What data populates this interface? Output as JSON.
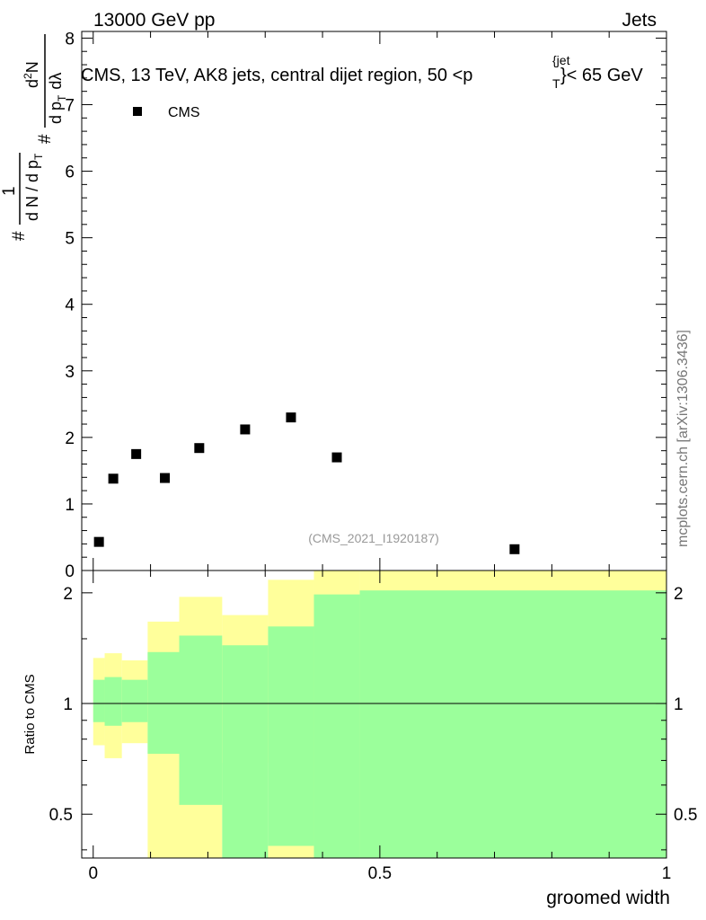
{
  "header": {
    "left": "13000 GeV pp",
    "right": "Jets"
  },
  "chart_data": [
    {
      "type": "scatter",
      "title": "CMS, 13 TeV, AK8 jets, central dijet region, 50 <p_T^{jet}< 65 GeV",
      "title_parts": {
        "prefix": "CMS, 13 TeV, AK8 jets, central dijet region, 50 <p",
        "sup": "{jet",
        "sub": "T",
        "suffix": "}< 65 GeV"
      },
      "ylabel": "#frac{1}{dN / dp_T} #frac{d^2N}{dp_T dλ}",
      "ylabel_parts": {
        "hash": "#",
        "one": "1",
        "den": "d N / d p",
        "den_sub": "T",
        "num": "d",
        "num_sup": "2",
        "num_tail": "N",
        "den2": "d p",
        "den2_sub": "T",
        "den2_tail": "dλ"
      },
      "ylim": [
        0,
        8.1
      ],
      "xlim": [
        -0.02,
        1.0
      ],
      "y_ticks": [
        "0",
        "1",
        "2",
        "3",
        "4",
        "5",
        "6",
        "7",
        "8"
      ],
      "legend": {
        "label": "CMS",
        "position": "top-left"
      },
      "analysis_label": "(CMS_2021_I1920187)",
      "series": [
        {
          "name": "CMS",
          "points": [
            {
              "x": 0.01,
              "y": 0.43
            },
            {
              "x": 0.035,
              "y": 1.38
            },
            {
              "x": 0.075,
              "y": 1.75
            },
            {
              "x": 0.125,
              "y": 1.39
            },
            {
              "x": 0.185,
              "y": 1.84
            },
            {
              "x": 0.265,
              "y": 2.12
            },
            {
              "x": 0.345,
              "y": 2.3
            },
            {
              "x": 0.425,
              "y": 1.7
            },
            {
              "x": 0.735,
              "y": 0.32
            }
          ]
        }
      ]
    },
    {
      "type": "area",
      "ylabel": "Ratio to CMS",
      "xlabel": "groomed width",
      "xlim": [
        -0.02,
        1.0
      ],
      "ylim": [
        0.38,
        2.3
      ],
      "y_scale": "log",
      "x_ticks": [
        "0",
        "0.5",
        "1"
      ],
      "y_ticks": [
        "0.5",
        "1",
        "2"
      ],
      "reference_line": 1,
      "bands": [
        {
          "x0": 0.0,
          "x1": 0.02,
          "stat": [
            0.89,
            1.16
          ],
          "total": [
            0.77,
            1.33
          ]
        },
        {
          "x0": 0.02,
          "x1": 0.05,
          "stat": [
            0.87,
            1.18
          ],
          "total": [
            0.71,
            1.37
          ]
        },
        {
          "x0": 0.05,
          "x1": 0.095,
          "stat": [
            0.89,
            1.16
          ],
          "total": [
            0.78,
            1.31
          ]
        },
        {
          "x0": 0.095,
          "x1": 0.15,
          "stat": [
            0.73,
            1.38
          ],
          "total": [
            0.37,
            1.67
          ]
        },
        {
          "x0": 0.15,
          "x1": 0.225,
          "stat": [
            0.53,
            1.53
          ],
          "total": [
            0.37,
            1.95
          ]
        },
        {
          "x0": 0.225,
          "x1": 0.305,
          "stat": [
            0.37,
            1.44
          ],
          "total": [
            0.69,
            1.74
          ]
        },
        {
          "x0": 0.305,
          "x1": 0.385,
          "stat": [
            0.41,
            1.62
          ],
          "total": [
            0.37,
            2.17
          ]
        },
        {
          "x0": 0.385,
          "x1": 0.465,
          "stat": [
            0.37,
            1.98
          ],
          "total": [
            0.37,
            2.35
          ]
        },
        {
          "x0": 0.465,
          "x1": 1.0,
          "stat": [
            0.37,
            2.03
          ],
          "total": [
            0.37,
            2.35
          ]
        }
      ]
    }
  ],
  "side_label": "mcplots.cern.ch [arXiv:1306.3436]",
  "colors": {
    "stat_band": "#9bff9b",
    "total_band": "#ffff9b",
    "marker": "#000000",
    "analysis_label": "#999999",
    "side_label": "#777777"
  }
}
